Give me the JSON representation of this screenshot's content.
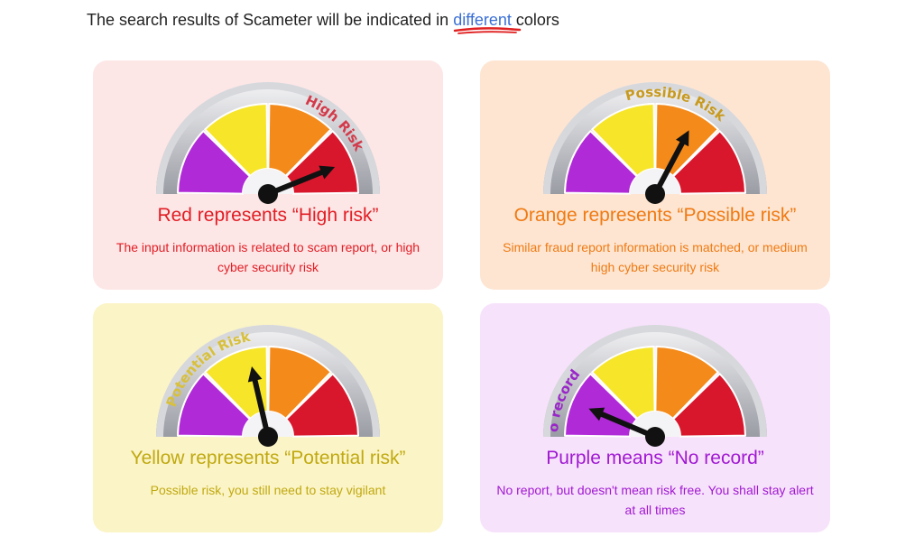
{
  "intro": {
    "text_before": "The search results of Scameter will be indicated in ",
    "highlight": "different",
    "text_after": " colors"
  },
  "cards": [
    {
      "key": "red",
      "gauge_label": "High Risk",
      "title": "Red represents  “High risk”",
      "description": "The input information is related to scam report, or high cyber security risk",
      "needle_angle_deg": 22,
      "label_color": "#d33a4a"
    },
    {
      "key": "orange",
      "gauge_label": "Possible Risk",
      "title": "Orange represents  “Possible risk”",
      "description": "Similar fraud report information is matched, or medium high cyber security risk",
      "needle_angle_deg": 62,
      "label_color": "#c89a1e"
    },
    {
      "key": "yellow",
      "gauge_label": "Potential Risk",
      "title": "Yellow represents  “Potential risk”",
      "description": "Possible risk, you still need to stay vigilant",
      "needle_angle_deg": 103,
      "label_color": "#d8c03a"
    },
    {
      "key": "purple",
      "gauge_label": "No record",
      "title": "Purple means  “No record”",
      "description": "No report, but doesn't mean risk free. You shall stay alert at all times",
      "needle_angle_deg": 157,
      "label_color": "#9a26c9"
    }
  ],
  "colors": {
    "purple": "#b02ad8",
    "yellow": "#f7e52a",
    "orange": "#f48a1a",
    "red": "#d8172d",
    "link": "#3b6fd6",
    "underline": "#e02020"
  }
}
